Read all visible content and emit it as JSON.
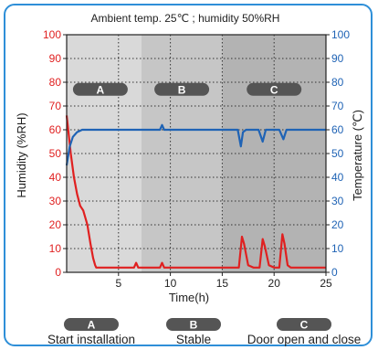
{
  "chart_data": {
    "type": "line",
    "title": "Ambient temp. 25℃ ; humidity 50%RH",
    "xlabel": "Time(h)",
    "ylabel_left": "Humidity (%RH)",
    "ylabel_right": "Temperature (℃)",
    "xlim": [
      0,
      25
    ],
    "ylim_left": [
      0,
      100
    ],
    "ylim_right": [
      0,
      100
    ],
    "x_ticks": [
      "5",
      "10",
      "15",
      "20",
      "25"
    ],
    "y_ticks_left": [
      "0",
      "10",
      "20",
      "30",
      "40",
      "50",
      "60",
      "70",
      "80",
      "90",
      "100"
    ],
    "y_ticks_right": [
      "0",
      "10",
      "20",
      "30",
      "40",
      "50",
      "60",
      "70",
      "80",
      "90",
      "100"
    ],
    "grid": true,
    "phases": [
      {
        "label": "A",
        "x_start": 0,
        "x_end": 7.2,
        "shade": "#d9d9d9"
      },
      {
        "label": "B",
        "x_start": 7.2,
        "x_end": 15,
        "shade": "#c6c6c6"
      },
      {
        "label": "C",
        "x_start": 15,
        "x_end": 25,
        "shade": "#b3b3b3"
      }
    ],
    "series": [
      {
        "name": "Humidity",
        "axis": "left",
        "color": "#e02020",
        "x": [
          0,
          0.15,
          0.4,
          0.7,
          1.0,
          1.3,
          1.6,
          2.0,
          2.3,
          2.55,
          2.75,
          2.85,
          3.0,
          3.3,
          4.0,
          5.0,
          6.0,
          6.5,
          6.7,
          6.9,
          7.2,
          8.0,
          9.0,
          9.2,
          9.4,
          10.0,
          11.0,
          12.0,
          13.0,
          14.0,
          15.0,
          15.5,
          16.0,
          16.6,
          16.9,
          17.1,
          17.5,
          18.0,
          18.6,
          18.9,
          19.1,
          19.5,
          20.0,
          20.5,
          20.8,
          21.0,
          21.3,
          21.6,
          22.0,
          23.0,
          23.5,
          24.0,
          25.0
        ],
        "values": [
          66,
          60,
          50,
          40,
          33,
          28,
          26,
          20,
          12,
          6,
          3,
          2,
          2,
          2,
          2,
          2,
          2,
          2,
          4,
          2,
          2,
          2,
          2,
          4,
          2,
          2,
          2,
          2,
          2,
          2,
          2,
          2,
          2,
          2,
          15,
          12,
          3,
          2,
          2,
          14,
          11,
          3,
          2,
          2,
          16,
          12,
          3,
          2,
          2,
          2,
          2,
          2,
          2
        ]
      },
      {
        "name": "Temperature",
        "axis": "right",
        "color": "#1f63b5",
        "x": [
          0,
          0.3,
          0.6,
          1.0,
          1.5,
          2.0,
          3.0,
          4.0,
          5.0,
          6.0,
          7.0,
          8.0,
          9.0,
          9.2,
          9.4,
          10.0,
          11.0,
          12.0,
          13.0,
          14.0,
          15.0,
          16.0,
          16.5,
          16.8,
          17.0,
          17.3,
          18.0,
          18.5,
          18.9,
          19.2,
          19.6,
          20.0,
          20.5,
          20.9,
          21.2,
          21.6,
          22.0,
          23.0,
          24.0,
          25.0
        ],
        "values": [
          45,
          53,
          57,
          59,
          60,
          60,
          60,
          60,
          60,
          60,
          60,
          60,
          60,
          62,
          60,
          60,
          60,
          60,
          60,
          60,
          60,
          60,
          60,
          53,
          59,
          60,
          60,
          60,
          55,
          60,
          60,
          60,
          60,
          56,
          60,
          60,
          60,
          60,
          60,
          60
        ]
      }
    ],
    "legend": [
      {
        "badge": "A",
        "label": "Start installation"
      },
      {
        "badge": "B",
        "label": "Stable"
      },
      {
        "badge": "C",
        "label": "Door open and close"
      }
    ]
  },
  "colors": {
    "humidity": "#e02020",
    "temperature": "#1f63b5",
    "badge": "#555555",
    "frame": "#2e8fd8"
  }
}
